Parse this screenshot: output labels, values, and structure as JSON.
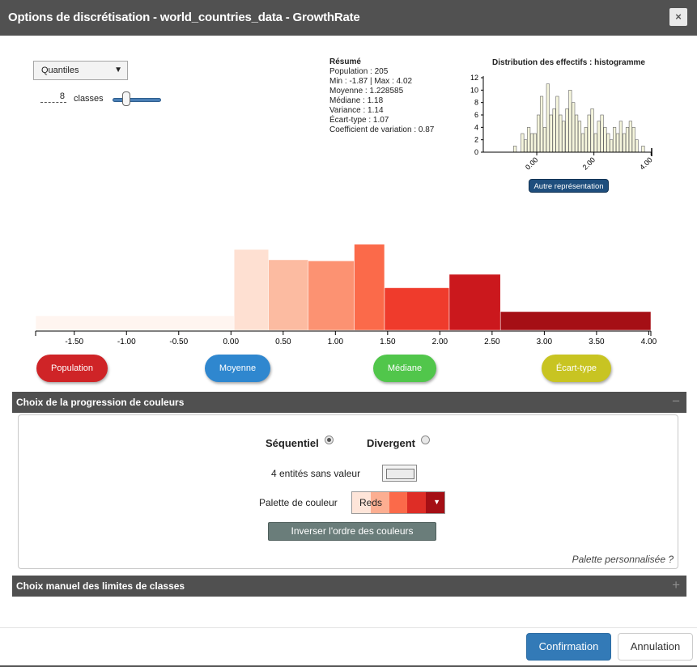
{
  "window": {
    "title": "Options de discrétisation - world_countries_data - GrowthRate",
    "close_label": "×"
  },
  "method": {
    "selected": "Quantiles",
    "arrow": "▼"
  },
  "classes": {
    "count": "8",
    "label": "classes",
    "slider_fraction": 0.28
  },
  "summary": {
    "heading": "Résumé",
    "lines": [
      "Population : 205",
      "Min : -1.87 | Max : 4.02",
      "Moyenne : 1.228585",
      "Médiane : 1.18",
      "Variance : 1.14",
      "Écart-type : 1.07",
      "Coefficient de variation : 0.87"
    ]
  },
  "small_histogram": {
    "title": "Distribution des effectifs : histogramme",
    "button_label": "Autre représentation"
  },
  "chart_data": [
    {
      "type": "bar",
      "title": "Distribution des effectifs : histogramme",
      "y_ticks": [
        "0",
        "2",
        "4",
        "6",
        "8",
        "10",
        "12"
      ],
      "x_ticks": [
        "0.00",
        "2.00",
        "4.00"
      ],
      "xlim": [
        -1.87,
        4.02
      ],
      "ylim": [
        0,
        12
      ],
      "bins": [
        {
          "x": -0.76,
          "v": 1
        },
        {
          "x": -0.5,
          "v": 3
        },
        {
          "x": -0.39,
          "v": 2
        },
        {
          "x": -0.28,
          "v": 4
        },
        {
          "x": -0.17,
          "v": 3
        },
        {
          "x": -0.06,
          "v": 3
        },
        {
          "x": 0.06,
          "v": 6
        },
        {
          "x": 0.17,
          "v": 9
        },
        {
          "x": 0.28,
          "v": 4
        },
        {
          "x": 0.39,
          "v": 11
        },
        {
          "x": 0.5,
          "v": 6
        },
        {
          "x": 0.61,
          "v": 7
        },
        {
          "x": 0.72,
          "v": 9
        },
        {
          "x": 0.83,
          "v": 6
        },
        {
          "x": 0.94,
          "v": 5
        },
        {
          "x": 1.06,
          "v": 7
        },
        {
          "x": 1.17,
          "v": 10
        },
        {
          "x": 1.28,
          "v": 8
        },
        {
          "x": 1.39,
          "v": 6
        },
        {
          "x": 1.5,
          "v": 5
        },
        {
          "x": 1.61,
          "v": 3
        },
        {
          "x": 1.72,
          "v": 4
        },
        {
          "x": 1.83,
          "v": 6
        },
        {
          "x": 1.94,
          "v": 7
        },
        {
          "x": 2.06,
          "v": 3
        },
        {
          "x": 2.17,
          "v": 5
        },
        {
          "x": 2.28,
          "v": 6
        },
        {
          "x": 2.39,
          "v": 4
        },
        {
          "x": 2.5,
          "v": 3
        },
        {
          "x": 2.61,
          "v": 2
        },
        {
          "x": 2.72,
          "v": 4
        },
        {
          "x": 2.83,
          "v": 3
        },
        {
          "x": 2.94,
          "v": 5
        },
        {
          "x": 3.06,
          "v": 3
        },
        {
          "x": 3.17,
          "v": 4
        },
        {
          "x": 3.28,
          "v": 5
        },
        {
          "x": 3.39,
          "v": 4
        },
        {
          "x": 3.5,
          "v": 2
        },
        {
          "x": 3.72,
          "v": 1
        }
      ],
      "bar_fill": "#f5f5dc"
    },
    {
      "type": "bar",
      "x_ticks": [
        "-1.50",
        "-1.00",
        "-0.50",
        "0.00",
        "0.50",
        "1.00",
        "1.50",
        "2.00",
        "2.50",
        "3.00",
        "3.50",
        "4.00"
      ],
      "x_tick_values": [
        -1.5,
        -1.0,
        -0.5,
        0.0,
        0.5,
        1.0,
        1.5,
        2.0,
        2.5,
        3.0,
        3.5,
        4.0
      ],
      "xlim": [
        -1.87,
        4.02
      ],
      "classes": [
        {
          "from": -1.87,
          "to": 0.03,
          "density": 0.14,
          "color": "#fff5f0"
        },
        {
          "from": 0.03,
          "to": 0.36,
          "density": 0.78,
          "color": "#fee0d2"
        },
        {
          "from": 0.36,
          "to": 0.74,
          "density": 0.68,
          "color": "#fcbba1"
        },
        {
          "from": 0.74,
          "to": 1.18,
          "density": 0.67,
          "color": "#fc9272"
        },
        {
          "from": 1.18,
          "to": 1.47,
          "density": 0.83,
          "color": "#fb6a4a"
        },
        {
          "from": 1.47,
          "to": 2.09,
          "density": 0.41,
          "color": "#ef3b2c"
        },
        {
          "from": 2.09,
          "to": 2.58,
          "density": 0.54,
          "color": "#cb181d"
        },
        {
          "from": 2.58,
          "to": 4.02,
          "density": 0.18,
          "color": "#a50f15"
        }
      ]
    }
  ],
  "stat_buttons": [
    {
      "label": "Population",
      "color": "#cf2427"
    },
    {
      "label": "Moyenne",
      "color": "#2f87cf"
    },
    {
      "label": "Médiane",
      "color": "#51c64b"
    },
    {
      "label": "Écart-type",
      "color": "#c8c422"
    }
  ],
  "color_section": {
    "title": "Choix de la progression de couleurs",
    "toggle": "−",
    "sequential_label": "Séquentiel",
    "divergent_label": "Divergent",
    "nodata_label": "4 entités sans valeur",
    "palette_label": "Palette de couleur",
    "palette_name": "Reds",
    "palette_arrow": "▼",
    "palette_swatches": [
      "#fee5d9",
      "#fcae91",
      "#fb6a4a",
      "#de2d26",
      "#a50f15"
    ],
    "invert_label": "Inverser l'ordre des couleurs",
    "custom_palette_label": "Palette personnalisée ?"
  },
  "manual_section": {
    "title": "Choix manuel des limites de classes",
    "toggle": "+"
  },
  "footer": {
    "confirm_label": "Confirmation",
    "cancel_label": "Annulation"
  }
}
